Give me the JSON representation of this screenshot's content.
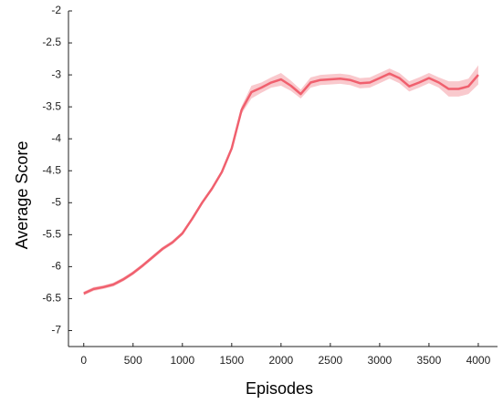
{
  "chart_data": {
    "type": "line",
    "xlabel": "Episodes",
    "ylabel": "Average Score",
    "x": [
      0,
      100,
      200,
      300,
      400,
      500,
      600,
      700,
      800,
      900,
      1000,
      1100,
      1200,
      1300,
      1400,
      1500,
      1600,
      1700,
      1800,
      1900,
      2000,
      2100,
      2200,
      2300,
      2400,
      2500,
      2600,
      2700,
      2800,
      2900,
      3000,
      3100,
      3200,
      3300,
      3400,
      3500,
      3600,
      3700,
      3800,
      3900,
      4000
    ],
    "values": [
      -6.42,
      -6.35,
      -6.32,
      -6.28,
      -6.2,
      -6.1,
      -5.98,
      -5.85,
      -5.72,
      -5.62,
      -5.48,
      -5.25,
      -5.0,
      -4.78,
      -4.52,
      -4.15,
      -3.55,
      -3.27,
      -3.2,
      -3.12,
      -3.07,
      -3.17,
      -3.3,
      -3.12,
      -3.08,
      -3.07,
      -3.06,
      -3.08,
      -3.13,
      -3.12,
      -3.05,
      -2.98,
      -3.05,
      -3.18,
      -3.12,
      -3.05,
      -3.12,
      -3.22,
      -3.22,
      -3.18,
      -3.0
    ],
    "band_upper": [
      -6.39,
      -6.32,
      -6.29,
      -6.25,
      -6.17,
      -6.07,
      -5.95,
      -5.82,
      -5.69,
      -5.59,
      -5.45,
      -5.22,
      -4.97,
      -4.75,
      -4.49,
      -4.12,
      -3.49,
      -3.17,
      -3.12,
      -3.04,
      -2.97,
      -3.09,
      -3.23,
      -3.04,
      -3.0,
      -2.99,
      -2.98,
      -3.0,
      -3.05,
      -3.04,
      -2.97,
      -2.9,
      -2.97,
      -3.1,
      -3.04,
      -2.97,
      -3.04,
      -3.1,
      -3.1,
      -3.06,
      -2.85
    ],
    "band_lower": [
      -6.45,
      -6.38,
      -6.35,
      -6.31,
      -6.23,
      -6.13,
      -6.01,
      -5.88,
      -5.75,
      -5.65,
      -5.51,
      -5.28,
      -5.03,
      -4.81,
      -4.55,
      -4.18,
      -3.61,
      -3.37,
      -3.28,
      -3.2,
      -3.17,
      -3.25,
      -3.37,
      -3.2,
      -3.16,
      -3.15,
      -3.14,
      -3.16,
      -3.21,
      -3.2,
      -3.13,
      -3.06,
      -3.13,
      -3.26,
      -3.2,
      -3.13,
      -3.2,
      -3.34,
      -3.34,
      -3.3,
      -3.15
    ],
    "color": "#f0606e",
    "band_color": "#f9c9cd",
    "xlim": [
      -155,
      4195
    ],
    "ylim": [
      -7.25,
      -2
    ],
    "xticks": [
      0,
      500,
      1000,
      1500,
      2000,
      2500,
      3000,
      3500,
      4000
    ],
    "yticks": [
      -2,
      -2.5,
      -3,
      -3.5,
      -4,
      -4.5,
      -5,
      -5.5,
      -6,
      -6.5,
      -7
    ]
  }
}
